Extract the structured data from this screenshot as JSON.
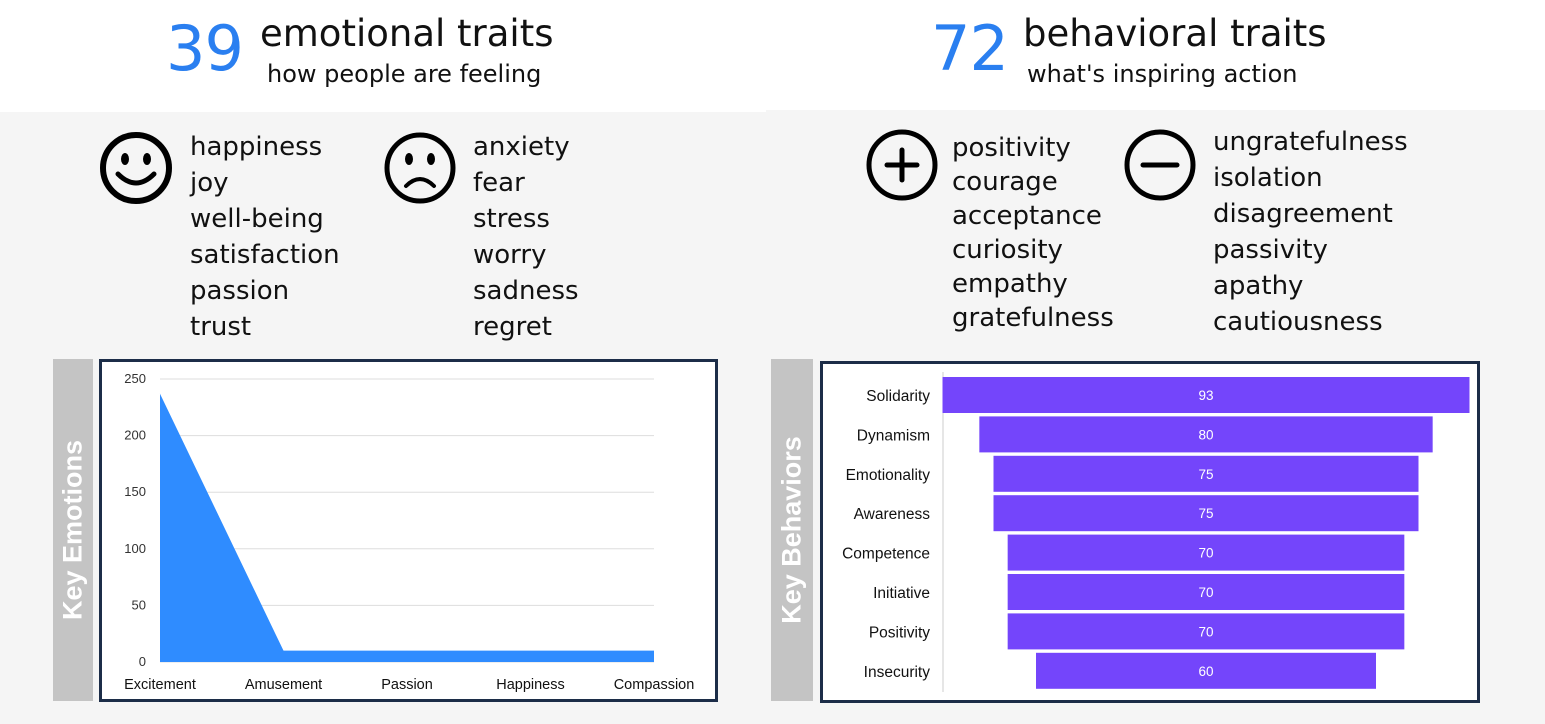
{
  "emotional": {
    "count": "39",
    "title": "emotional traits",
    "subtitle": "how people are feeling",
    "positive_icon": "smiley-face-icon",
    "negative_icon": "sad-face-icon",
    "positive_words": [
      "happiness",
      "joy",
      "well-being",
      "satisfaction",
      "passion",
      "trust"
    ],
    "negative_words": [
      "anxiety",
      "fear",
      "stress",
      "worry",
      "sadness",
      "regret"
    ],
    "side_label": "Key Emotions"
  },
  "behavioral": {
    "count": "72",
    "title": "behavioral traits",
    "subtitle": "what's inspiring action",
    "positive_icon": "plus-circle-icon",
    "negative_icon": "minus-circle-icon",
    "positive_words": [
      "positivity",
      "courage",
      "acceptance",
      "curiosity",
      "empathy",
      "gratefulness"
    ],
    "negative_words": [
      "ungratefulness",
      "isolation",
      "disagreement",
      "passivity",
      "apathy",
      "cautiousness"
    ],
    "side_label": "Key Behaviors"
  },
  "colors": {
    "number_blue": "#2a7ff0",
    "area_blue": "#2f8cff",
    "bar_purple": "#7445fb",
    "frame": "#1c2d48",
    "tab_gray": "#c4c4c4"
  },
  "chart_data": [
    {
      "type": "area",
      "categories": [
        "Excitement",
        "Amusement",
        "Passion",
        "Happiness",
        "Compassion"
      ],
      "values": [
        237,
        10,
        10,
        10,
        10
      ],
      "ylim": [
        0,
        250
      ],
      "yticks": [
        0,
        50,
        100,
        150,
        200,
        250
      ],
      "grid": true,
      "title": "",
      "xlabel": "",
      "ylabel": ""
    },
    {
      "type": "bar",
      "orientation": "horizontal-funnel",
      "categories": [
        "Solidarity",
        "Dynamism",
        "Emotionality",
        "Awareness",
        "Competence",
        "Initiative",
        "Positivity",
        "Insecurity"
      ],
      "values": [
        93,
        80,
        75,
        75,
        70,
        70,
        70,
        60
      ],
      "data_labels": [
        "93",
        "80",
        "75",
        "75",
        "70",
        "70",
        "70",
        "60"
      ],
      "title": "",
      "xlabel": "",
      "ylabel": ""
    }
  ]
}
